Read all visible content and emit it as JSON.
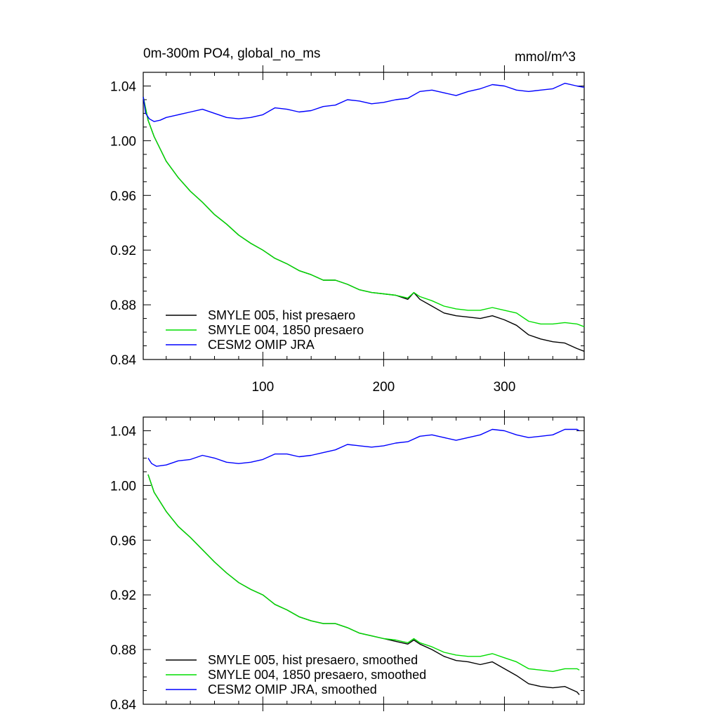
{
  "chart_data": [
    {
      "type": "line",
      "title": "0m-300m PO4, global_no_ms",
      "units": "mmol/m^3",
      "xlim": [
        1,
        366
      ],
      "ylim": [
        0.84,
        1.05
      ],
      "yticks": [
        0.84,
        0.88,
        0.92,
        0.96,
        1.0,
        1.04
      ],
      "ytick_labels": [
        "0.84",
        "0.88",
        "0.92",
        "0.96",
        "1.00",
        "1.04"
      ],
      "xticks": [
        100,
        200,
        300
      ],
      "xtick_labels": [
        "100",
        "200",
        "300"
      ],
      "legend": "bottom-left",
      "series": [
        {
          "name": "SMYLE 005, hist presaero",
          "color": "#000000",
          "x": [
            1,
            5,
            10,
            20,
            30,
            40,
            50,
            60,
            70,
            80,
            90,
            100,
            110,
            120,
            130,
            140,
            150,
            160,
            170,
            180,
            190,
            200,
            210,
            220,
            225,
            230,
            240,
            250,
            260,
            270,
            280,
            290,
            300,
            310,
            320,
            330,
            340,
            350,
            360,
            366
          ],
          "y": [
            1.032,
            1.015,
            1.003,
            0.985,
            0.973,
            0.963,
            0.955,
            0.946,
            0.939,
            0.931,
            0.925,
            0.92,
            0.914,
            0.91,
            0.905,
            0.902,
            0.898,
            0.898,
            0.895,
            0.891,
            0.889,
            0.888,
            0.887,
            0.884,
            0.889,
            0.884,
            0.879,
            0.874,
            0.872,
            0.871,
            0.87,
            0.872,
            0.869,
            0.865,
            0.858,
            0.855,
            0.853,
            0.852,
            0.848,
            0.846
          ]
        },
        {
          "name": "SMYLE 004, 1850 presaero",
          "color": "#00dd00",
          "x": [
            1,
            5,
            10,
            20,
            30,
            40,
            50,
            60,
            70,
            80,
            90,
            100,
            110,
            120,
            130,
            140,
            150,
            160,
            170,
            180,
            190,
            200,
            210,
            220,
            225,
            230,
            240,
            250,
            260,
            270,
            280,
            290,
            300,
            310,
            320,
            330,
            340,
            350,
            360,
            366
          ],
          "y": [
            1.032,
            1.015,
            1.003,
            0.985,
            0.973,
            0.963,
            0.955,
            0.946,
            0.939,
            0.931,
            0.925,
            0.92,
            0.914,
            0.91,
            0.905,
            0.902,
            0.898,
            0.898,
            0.895,
            0.891,
            0.889,
            0.888,
            0.887,
            0.885,
            0.889,
            0.886,
            0.883,
            0.879,
            0.877,
            0.876,
            0.876,
            0.878,
            0.876,
            0.874,
            0.868,
            0.866,
            0.866,
            0.867,
            0.866,
            0.864
          ]
        },
        {
          "name": "CESM2 OMIP JRA",
          "color": "#0000ff",
          "x": [
            1,
            3,
            6,
            10,
            15,
            20,
            30,
            40,
            50,
            60,
            70,
            80,
            90,
            100,
            110,
            120,
            130,
            140,
            150,
            160,
            170,
            180,
            190,
            200,
            210,
            220,
            230,
            240,
            250,
            260,
            270,
            280,
            290,
            300,
            310,
            320,
            330,
            340,
            350,
            360,
            366
          ],
          "y": [
            1.032,
            1.02,
            1.016,
            1.014,
            1.015,
            1.017,
            1.019,
            1.021,
            1.023,
            1.02,
            1.017,
            1.016,
            1.017,
            1.019,
            1.024,
            1.023,
            1.021,
            1.022,
            1.025,
            1.026,
            1.03,
            1.029,
            1.027,
            1.028,
            1.03,
            1.031,
            1.036,
            1.037,
            1.035,
            1.033,
            1.036,
            1.038,
            1.041,
            1.04,
            1.037,
            1.036,
            1.037,
            1.038,
            1.042,
            1.04,
            1.039
          ]
        }
      ]
    },
    {
      "type": "line",
      "title": "",
      "units": "",
      "xlim": [
        1,
        366
      ],
      "ylim": [
        0.84,
        1.05
      ],
      "yticks": [
        0.84,
        0.88,
        0.92,
        0.96,
        1.0,
        1.04
      ],
      "ytick_labels": [
        "0.84",
        "0.88",
        "0.92",
        "0.96",
        "1.00",
        "1.04"
      ],
      "xticks": [
        100,
        200,
        300
      ],
      "xtick_labels": [],
      "legend": "bottom-left",
      "series": [
        {
          "name": "SMYLE 005, hist presaero, smoothed",
          "color": "#000000",
          "x": [
            5,
            10,
            20,
            30,
            40,
            50,
            60,
            70,
            80,
            90,
            100,
            110,
            120,
            130,
            140,
            150,
            160,
            170,
            180,
            190,
            200,
            210,
            220,
            225,
            230,
            240,
            250,
            260,
            270,
            280,
            290,
            300,
            310,
            320,
            330,
            340,
            350,
            360,
            362
          ],
          "y": [
            1.008,
            0.995,
            0.981,
            0.97,
            0.962,
            0.953,
            0.944,
            0.936,
            0.929,
            0.924,
            0.92,
            0.913,
            0.909,
            0.904,
            0.901,
            0.899,
            0.899,
            0.896,
            0.892,
            0.89,
            0.888,
            0.886,
            0.884,
            0.887,
            0.884,
            0.88,
            0.875,
            0.872,
            0.871,
            0.869,
            0.871,
            0.866,
            0.861,
            0.855,
            0.853,
            0.852,
            0.853,
            0.849,
            0.847
          ]
        },
        {
          "name": "SMYLE 004, 1850 presaero, smoothed",
          "color": "#00dd00",
          "x": [
            5,
            10,
            20,
            30,
            40,
            50,
            60,
            70,
            80,
            90,
            100,
            110,
            120,
            130,
            140,
            150,
            160,
            170,
            180,
            190,
            200,
            210,
            220,
            225,
            230,
            240,
            250,
            260,
            270,
            280,
            290,
            300,
            310,
            320,
            330,
            340,
            350,
            360,
            362
          ],
          "y": [
            1.008,
            0.995,
            0.981,
            0.97,
            0.962,
            0.953,
            0.944,
            0.936,
            0.929,
            0.924,
            0.92,
            0.913,
            0.909,
            0.904,
            0.901,
            0.899,
            0.899,
            0.896,
            0.892,
            0.89,
            0.888,
            0.887,
            0.885,
            0.888,
            0.885,
            0.882,
            0.878,
            0.876,
            0.875,
            0.875,
            0.877,
            0.874,
            0.871,
            0.866,
            0.865,
            0.864,
            0.866,
            0.866,
            0.865
          ]
        },
        {
          "name": "CESM2 OMIP JRA, smoothed",
          "color": "#0000ff",
          "x": [
            5,
            8,
            12,
            20,
            30,
            40,
            50,
            60,
            70,
            80,
            90,
            100,
            110,
            120,
            130,
            140,
            150,
            160,
            170,
            180,
            190,
            200,
            210,
            220,
            230,
            240,
            250,
            260,
            270,
            280,
            290,
            300,
            310,
            320,
            330,
            340,
            350,
            360,
            362
          ],
          "y": [
            1.02,
            1.016,
            1.014,
            1.015,
            1.018,
            1.019,
            1.022,
            1.02,
            1.017,
            1.016,
            1.017,
            1.019,
            1.023,
            1.023,
            1.021,
            1.022,
            1.024,
            1.026,
            1.03,
            1.029,
            1.028,
            1.029,
            1.031,
            1.032,
            1.036,
            1.037,
            1.035,
            1.033,
            1.035,
            1.037,
            1.041,
            1.04,
            1.037,
            1.035,
            1.036,
            1.037,
            1.041,
            1.041,
            1.04
          ]
        }
      ]
    }
  ]
}
